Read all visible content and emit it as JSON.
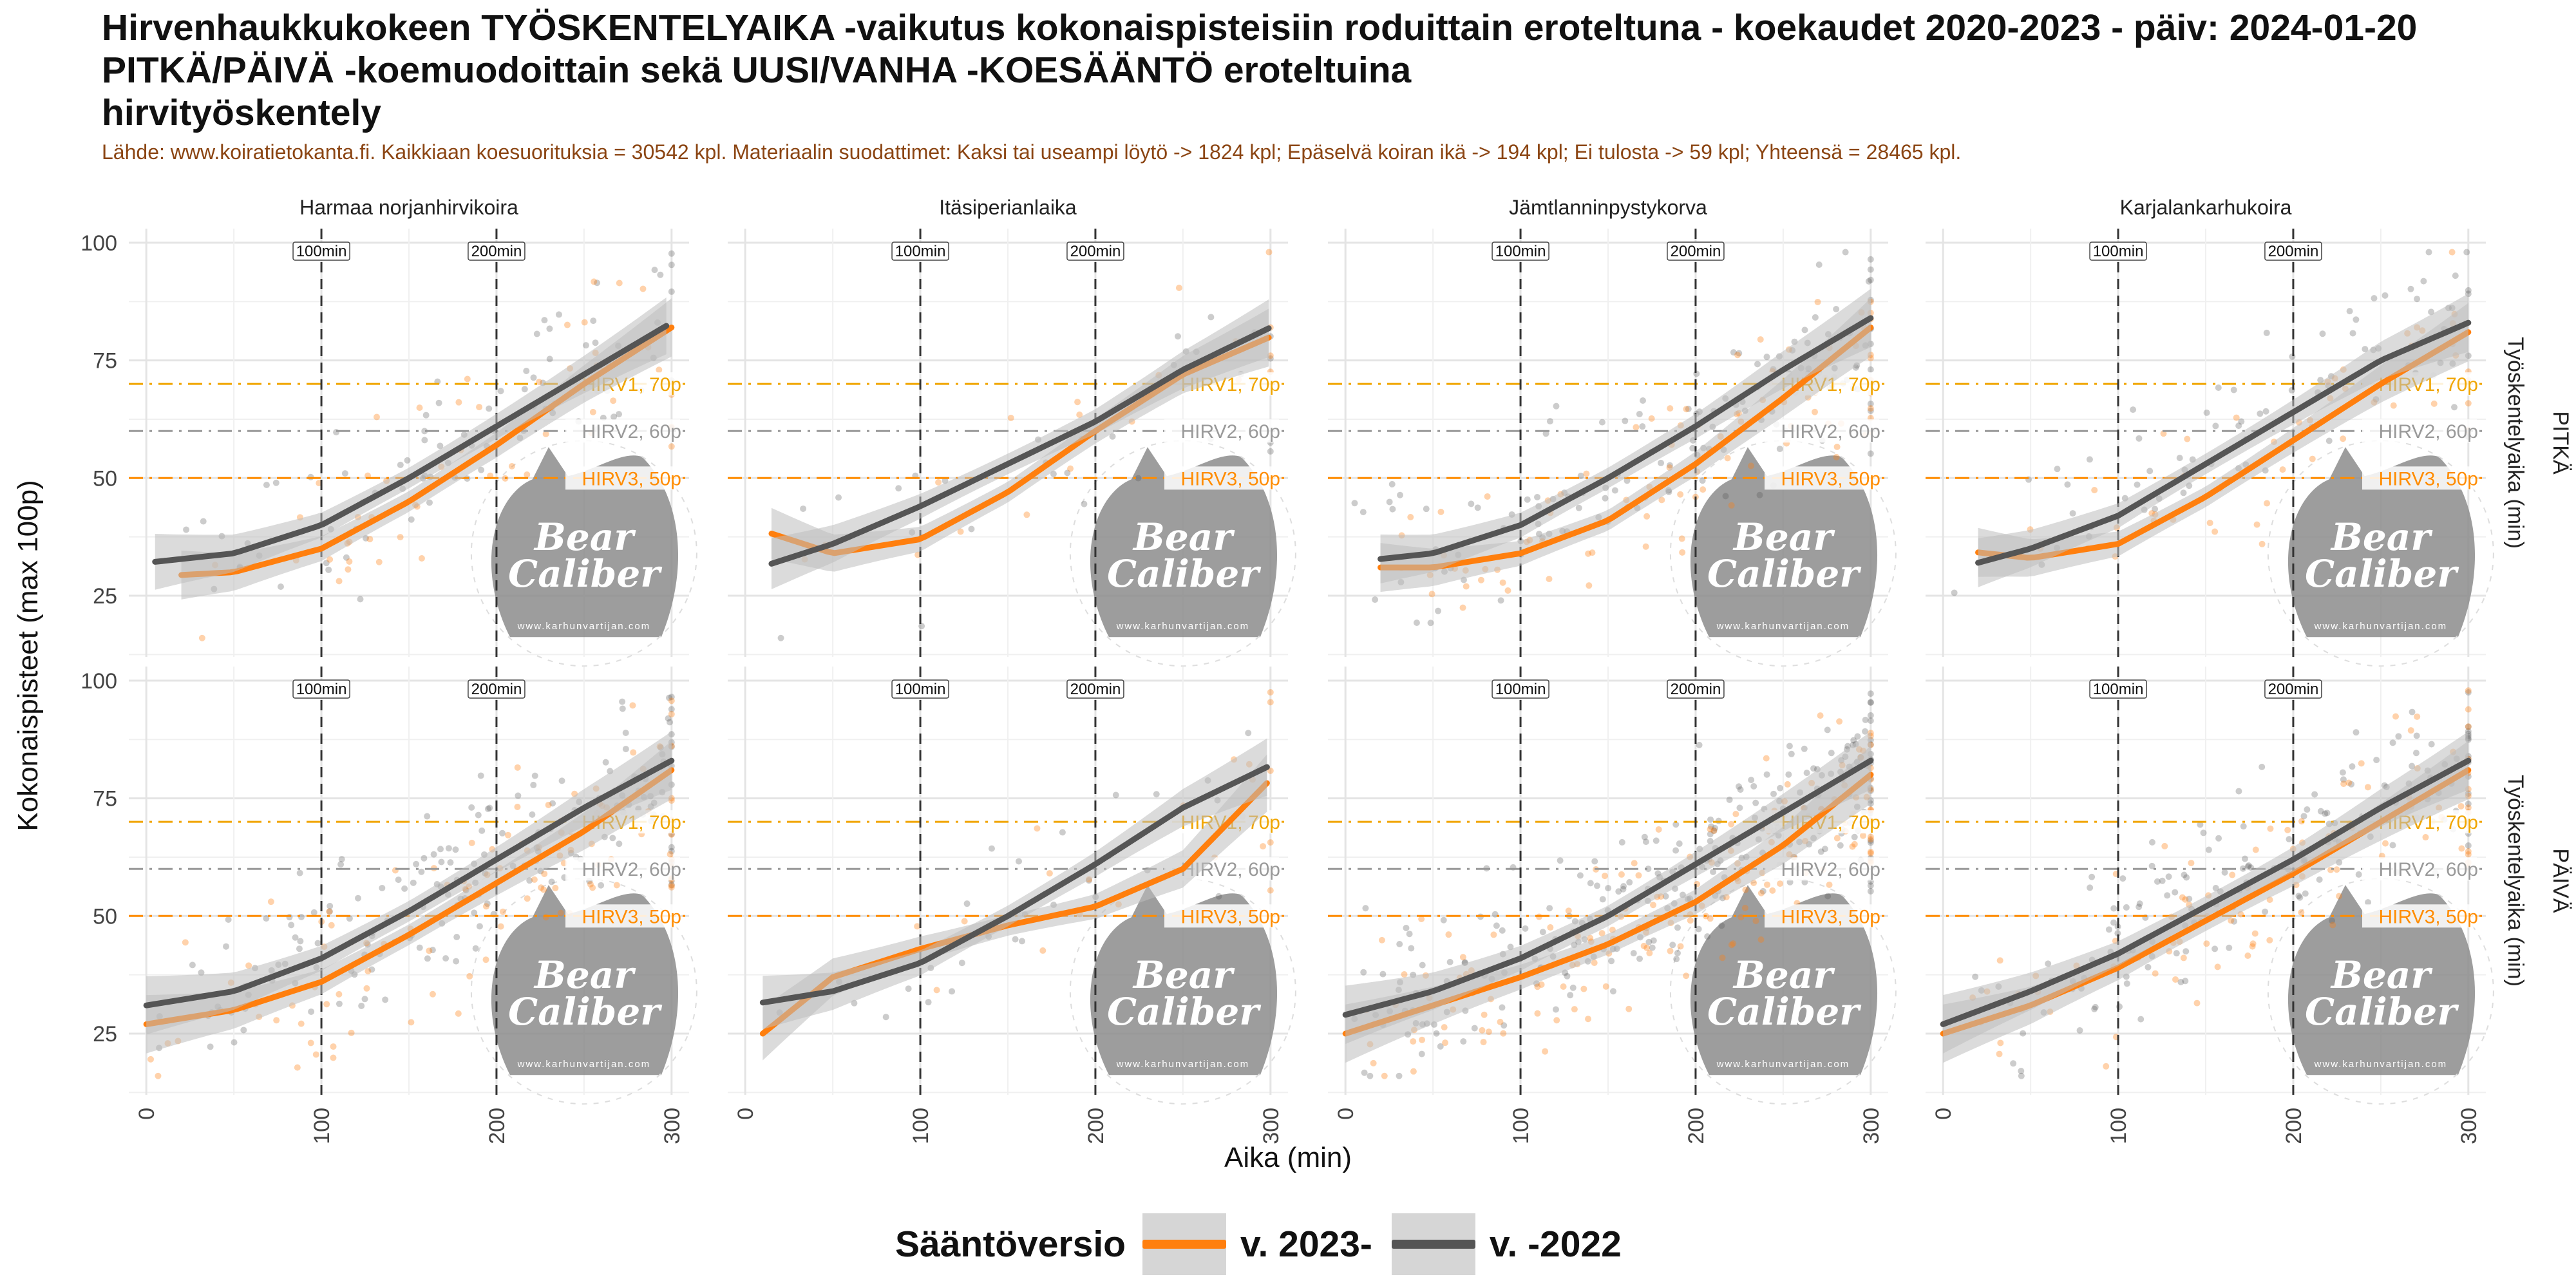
{
  "header": {
    "title_lines": [
      "Hirvenhaukkukokeen TYÖSKENTELYAIKA -vaikutus kokonaispisteisiin roduittain eroteltuna - koekaudet 2020-2023 - päiv: 2024-01-20",
      "PITKÄ/PÄIVÄ -koemuodoittain sekä UUSI/VANHA -KOESÄÄNTÖ eroteltuina",
      "hirvityöskentely"
    ],
    "source": "Lähde: www.koiratietokanta.fi. Kaikkiaan koesuorituksia = 30542 kpl. Materiaalin suodattimet: Kaksi tai useampi löytö -> 1824 kpl; Epäselvä koiran ikä -> 194 kpl; Ei tulosta -> 59 kpl; Yhteensä = 28465 kpl."
  },
  "legend": {
    "title": "Sääntöversio",
    "items": [
      {
        "label": "v. 2023-",
        "color": "#ff7f0e"
      },
      {
        "label": "v. -2022",
        "color": "#555555"
      }
    ]
  },
  "colors": {
    "new_rule": "#ff7f0e",
    "old_rule": "#555555",
    "hirv1": "#f0a500",
    "hirv2": "#999999",
    "hirv3": "#ff8c00",
    "watermark": "#8c8c8c"
  },
  "watermark": {
    "line1": "Bear",
    "line2": "Caliber",
    "url": "www.karhunvartijan.com"
  },
  "chart_data": {
    "type": "scatter",
    "xlabel": "Aika (min)",
    "ylabel": "Kokonaispisteet (max 100p)",
    "xlim": [
      -10,
      310
    ],
    "ylim": [
      12,
      103
    ],
    "x_ticks": [
      0,
      100,
      200,
      300
    ],
    "y_ticks": [
      25,
      50,
      75,
      100
    ],
    "grid": true,
    "legend_position": "bottom",
    "columns": [
      "Harmaa norjanhirvikoira",
      "Itäsiperianlaika",
      "Jämtlanninpystykorva",
      "Karjalankarhukoira"
    ],
    "rows": [
      "PITKÄ",
      "PÄIVÄ"
    ],
    "row_strip_title": "Työskentelyaika (min)",
    "vlines": [
      {
        "x": 100,
        "label": "100min"
      },
      {
        "x": 200,
        "label": "200min"
      }
    ],
    "hlines": [
      {
        "y": 70,
        "label": "HIRV1, 70p",
        "color": "#f0a500"
      },
      {
        "y": 60,
        "label": "HIRV2, 60p",
        "color": "#999999"
      },
      {
        "y": 50,
        "label": "HIRV3, 50p",
        "color": "#ff8c00"
      }
    ],
    "series": [
      "v. 2023-",
      "v. -2022"
    ],
    "smooth_x": [
      0,
      50,
      100,
      150,
      200,
      250,
      300
    ],
    "panels": [
      {
        "row": "PITKÄ",
        "col": "Harmaa norjanhirvikoira",
        "density": 1.0,
        "curves": {
          "v. 2023-": {
            "x_start": 20,
            "y": [
              29,
              30,
              35,
              45,
              57,
              70,
              82
            ]
          },
          "v. -2022": {
            "x_start": 5,
            "y": [
              32,
              34,
              40,
              50,
              61,
              72,
              83
            ]
          }
        }
      },
      {
        "row": "PITKÄ",
        "col": "Itäsiperianlaika",
        "density": 0.35,
        "curves": {
          "v. 2023-": {
            "x_start": 15,
            "y": [
              40,
              34,
              37,
              47,
              60,
              72,
              80
            ]
          },
          "v. -2022": {
            "x_start": 15,
            "y": [
              30,
              36,
              44,
              53,
              62,
              73,
              82
            ]
          }
        }
      },
      {
        "row": "PITKÄ",
        "col": "Jämtlanninpystykorva",
        "density": 1.6,
        "curves": {
          "v. 2023-": {
            "x_start": 20,
            "y": [
              31,
              31,
              34,
              41,
              53,
              67,
              82
            ]
          },
          "v. -2022": {
            "x_start": 20,
            "y": [
              32,
              34,
              40,
              50,
              61,
              73,
              84
            ]
          }
        }
      },
      {
        "row": "PITKÄ",
        "col": "Karjalankarhukoira",
        "density": 0.9,
        "curves": {
          "v. 2023-": {
            "x_start": 20,
            "y": [
              35,
              33,
              36,
              46,
              58,
              70,
              81
            ]
          },
          "v. -2022": {
            "x_start": 20,
            "y": [
              30,
              35,
              42,
              53,
              64,
              75,
              83
            ]
          }
        }
      },
      {
        "row": "PÄIVÄ",
        "col": "Harmaa norjanhirvikoira",
        "density": 2.0,
        "curves": {
          "v. 2023-": {
            "x_start": 0,
            "y": [
              27,
              30,
              36,
              46,
              57,
              68,
              81
            ]
          },
          "v. -2022": {
            "x_start": 0,
            "y": [
              31,
              34,
              41,
              51,
              62,
              73,
              83
            ]
          }
        }
      },
      {
        "row": "PÄIVÄ",
        "col": "Itäsiperianlaika",
        "density": 0.4,
        "curves": {
          "v. 2023-": {
            "x_start": 10,
            "y": [
              22,
              37,
              43,
              48,
              52,
              60,
              79
            ]
          },
          "v. -2022": {
            "x_start": 10,
            "y": [
              31,
              34,
              40,
              50,
              61,
              73,
              82
            ]
          }
        }
      },
      {
        "row": "PÄIVÄ",
        "col": "Jämtlanninpystykorva",
        "density": 3.0,
        "curves": {
          "v. 2023-": {
            "x_start": 0,
            "y": [
              25,
              31,
              37,
              44,
              53,
              65,
              80
            ]
          },
          "v. -2022": {
            "x_start": 0,
            "y": [
              29,
              34,
              41,
              50,
              61,
              72,
              83
            ]
          }
        }
      },
      {
        "row": "PÄIVÄ",
        "col": "Karjalankarhukoira",
        "density": 1.8,
        "curves": {
          "v. 2023-": {
            "x_start": 0,
            "y": [
              25,
              31,
              39,
              49,
              59,
              70,
              81
            ]
          },
          "v. -2022": {
            "x_start": 0,
            "y": [
              27,
              34,
              42,
              52,
              62,
              73,
              83
            ]
          }
        }
      }
    ]
  }
}
